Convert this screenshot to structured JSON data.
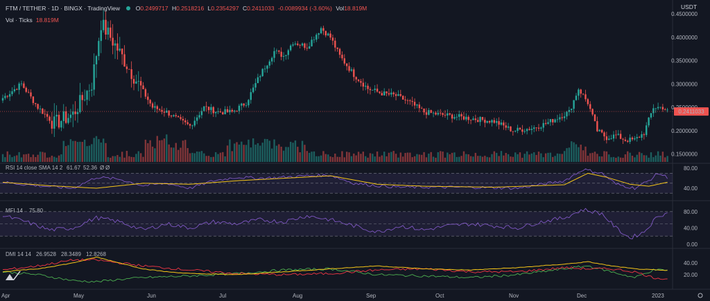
{
  "header": {
    "symbol": "FTM / TETHER · 1D · BINGX · TradingView",
    "o_label": "O",
    "o": "0.2499717",
    "h_label": "H",
    "h": "0.2518216",
    "l_label": "L",
    "l": "0.2354297",
    "c_label": "C",
    "c": "0.2411033",
    "change": "-0.0089934 (-3.60%)",
    "vol_label": "Vol",
    "vol": "18.819M",
    "vol_ticks_label": "Vol · Ticks",
    "vol_ticks": "18.819M",
    "currency": "USDT"
  },
  "colors": {
    "background": "#131722",
    "up": "#26a69a",
    "down": "#ef5350",
    "rsi_line": "#7e57c2",
    "rsi_sma": "#f5c518",
    "mfi_line": "#7e57c2",
    "dmi_adx": "#f5c518",
    "dmi_plus": "#4caf50",
    "dmi_minus": "#f23645"
  },
  "chart_data": [
    {
      "type": "candlestick",
      "title": "FTM / TETHER · 1D · BINGX",
      "x_ticks": [
        "Apr",
        "May",
        "Jun",
        "Jul",
        "Aug",
        "Sep",
        "Oct",
        "Nov",
        "Dec",
        "2023"
      ],
      "y_ticks": [
        "0.4500000",
        "0.4000000",
        "0.3500000",
        "0.3000000",
        "0.2500000",
        "0.2000000",
        "0.1500000"
      ],
      "ylim": [
        0.13,
        0.48
      ],
      "last_price": "0.2411033",
      "anchors_close": [
        [
          0,
          0.27
        ],
        [
          8,
          0.3
        ],
        [
          15,
          0.25
        ],
        [
          22,
          0.215
        ],
        [
          30,
          0.235
        ],
        [
          38,
          0.3
        ],
        [
          42,
          0.43
        ],
        [
          46,
          0.4
        ],
        [
          52,
          0.35
        ],
        [
          58,
          0.3
        ],
        [
          64,
          0.25
        ],
        [
          70,
          0.24
        ],
        [
          76,
          0.22
        ],
        [
          80,
          0.21
        ],
        [
          86,
          0.25
        ],
        [
          92,
          0.24
        ],
        [
          98,
          0.24
        ],
        [
          104,
          0.26
        ],
        [
          110,
          0.32
        ],
        [
          116,
          0.37
        ],
        [
          120,
          0.36
        ],
        [
          124,
          0.39
        ],
        [
          130,
          0.38
        ],
        [
          136,
          0.42
        ],
        [
          140,
          0.4
        ],
        [
          144,
          0.36
        ],
        [
          150,
          0.32
        ],
        [
          156,
          0.29
        ],
        [
          162,
          0.28
        ],
        [
          168,
          0.275
        ],
        [
          174,
          0.26
        ],
        [
          180,
          0.24
        ],
        [
          186,
          0.235
        ],
        [
          194,
          0.23
        ],
        [
          202,
          0.225
        ],
        [
          210,
          0.22
        ],
        [
          218,
          0.2
        ],
        [
          226,
          0.205
        ],
        [
          232,
          0.215
        ],
        [
          238,
          0.23
        ],
        [
          242,
          0.24
        ],
        [
          246,
          0.29
        ],
        [
          250,
          0.26
        ],
        [
          254,
          0.2
        ],
        [
          258,
          0.185
        ],
        [
          262,
          0.19
        ],
        [
          266,
          0.18
        ],
        [
          270,
          0.18
        ],
        [
          274,
          0.195
        ],
        [
          278,
          0.25
        ],
        [
          282,
          0.25
        ],
        [
          284,
          0.241
        ]
      ]
    },
    {
      "type": "bar",
      "name": "Vol · Ticks",
      "last_value": "18.819M"
    },
    {
      "type": "line",
      "title": "RSI 14 close SMA 14 2",
      "values_label": [
        "61.67",
        "52.36",
        "Ø",
        "Ø"
      ],
      "y_ticks": [
        "80.00",
        "40.00"
      ],
      "ylim": [
        15,
        90
      ],
      "band": [
        30,
        70
      ],
      "anchors_rsi": [
        [
          0,
          52
        ],
        [
          15,
          45
        ],
        [
          30,
          40
        ],
        [
          40,
          62
        ],
        [
          50,
          58
        ],
        [
          60,
          45
        ],
        [
          70,
          50
        ],
        [
          80,
          40
        ],
        [
          90,
          55
        ],
        [
          100,
          62
        ],
        [
          110,
          60
        ],
        [
          120,
          62
        ],
        [
          130,
          65
        ],
        [
          140,
          66
        ],
        [
          150,
          50
        ],
        [
          160,
          45
        ],
        [
          170,
          42
        ],
        [
          180,
          42
        ],
        [
          200,
          42
        ],
        [
          220,
          40
        ],
        [
          240,
          55
        ],
        [
          248,
          78
        ],
        [
          256,
          70
        ],
        [
          262,
          48
        ],
        [
          270,
          40
        ],
        [
          276,
          55
        ],
        [
          280,
          70
        ],
        [
          284,
          62
        ]
      ],
      "anchors_sma": [
        [
          0,
          52
        ],
        [
          20,
          45
        ],
        [
          40,
          40
        ],
        [
          60,
          50
        ],
        [
          80,
          48
        ],
        [
          100,
          55
        ],
        [
          120,
          60
        ],
        [
          140,
          65
        ],
        [
          160,
          48
        ],
        [
          180,
          44
        ],
        [
          210,
          42
        ],
        [
          240,
          47
        ],
        [
          250,
          70
        ],
        [
          258,
          62
        ],
        [
          268,
          48
        ],
        [
          276,
          44
        ],
        [
          284,
          52
        ]
      ]
    },
    {
      "type": "line",
      "title": "MFI 14",
      "values_label": [
        "75.80"
      ],
      "y_ticks": [
        "80.00",
        "40.00",
        "0.00"
      ],
      "ylim": [
        0,
        100
      ],
      "band": [
        20,
        80
      ],
      "anchors_mfi": [
        [
          0,
          70
        ],
        [
          10,
          55
        ],
        [
          20,
          35
        ],
        [
          30,
          40
        ],
        [
          40,
          65
        ],
        [
          50,
          55
        ],
        [
          60,
          35
        ],
        [
          70,
          50
        ],
        [
          80,
          40
        ],
        [
          90,
          55
        ],
        [
          100,
          50
        ],
        [
          110,
          60
        ],
        [
          120,
          55
        ],
        [
          130,
          70
        ],
        [
          140,
          60
        ],
        [
          150,
          45
        ],
        [
          160,
          30
        ],
        [
          170,
          45
        ],
        [
          180,
          35
        ],
        [
          190,
          45
        ],
        [
          200,
          50
        ],
        [
          210,
          45
        ],
        [
          220,
          40
        ],
        [
          230,
          55
        ],
        [
          240,
          65
        ],
        [
          248,
          85
        ],
        [
          256,
          75
        ],
        [
          262,
          40
        ],
        [
          268,
          15
        ],
        [
          274,
          30
        ],
        [
          280,
          70
        ],
        [
          284,
          76
        ]
      ]
    },
    {
      "type": "line",
      "title": "DMI 14 14",
      "values_label": [
        "26.9528",
        "28.3489",
        "12.8268"
      ],
      "y_ticks": [
        "40.00",
        "20.00"
      ],
      "ylim": [
        0,
        60
      ],
      "anchors_adx": [
        [
          0,
          25
        ],
        [
          15,
          30
        ],
        [
          30,
          40
        ],
        [
          40,
          50
        ],
        [
          50,
          40
        ],
        [
          60,
          30
        ],
        [
          70,
          25
        ],
        [
          80,
          22
        ],
        [
          100,
          20
        ],
        [
          120,
          25
        ],
        [
          140,
          30
        ],
        [
          160,
          35
        ],
        [
          180,
          30
        ],
        [
          200,
          28
        ],
        [
          220,
          32
        ],
        [
          240,
          38
        ],
        [
          250,
          42
        ],
        [
          260,
          35
        ],
        [
          270,
          30
        ],
        [
          284,
          27
        ]
      ],
      "anchors_plus": [
        [
          0,
          25
        ],
        [
          15,
          20
        ],
        [
          30,
          10
        ],
        [
          40,
          8
        ],
        [
          50,
          12
        ],
        [
          60,
          15
        ],
        [
          80,
          18
        ],
        [
          100,
          22
        ],
        [
          120,
          28
        ],
        [
          140,
          30
        ],
        [
          160,
          20
        ],
        [
          180,
          18
        ],
        [
          200,
          15
        ],
        [
          220,
          20
        ],
        [
          240,
          30
        ],
        [
          250,
          35
        ],
        [
          260,
          25
        ],
        [
          270,
          15
        ],
        [
          278,
          28
        ],
        [
          284,
          28
        ]
      ],
      "anchors_minus": [
        [
          0,
          28
        ],
        [
          15,
          35
        ],
        [
          30,
          45
        ],
        [
          40,
          45
        ],
        [
          50,
          40
        ],
        [
          60,
          35
        ],
        [
          80,
          28
        ],
        [
          100,
          22
        ],
        [
          120,
          20
        ],
        [
          140,
          22
        ],
        [
          160,
          28
        ],
        [
          180,
          30
        ],
        [
          200,
          25
        ],
        [
          220,
          25
        ],
        [
          240,
          32
        ],
        [
          250,
          30
        ],
        [
          260,
          30
        ],
        [
          270,
          25
        ],
        [
          278,
          15
        ],
        [
          284,
          13
        ]
      ]
    }
  ]
}
